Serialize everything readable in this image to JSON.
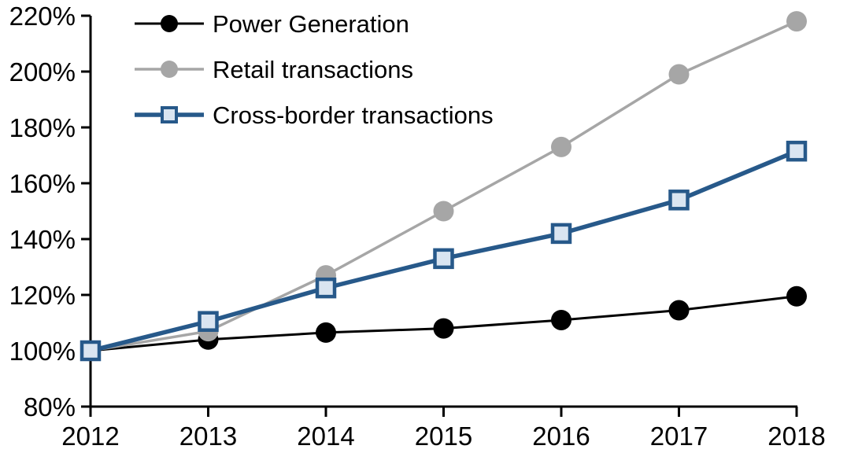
{
  "chart_data": {
    "type": "line",
    "title": "",
    "xlabel": "",
    "ylabel": "",
    "categories": [
      "2012",
      "2013",
      "2014",
      "2015",
      "2016",
      "2017",
      "2018"
    ],
    "series": [
      {
        "name": "Power Generation",
        "values": [
          100,
          104,
          106.5,
          108,
          111,
          114.5,
          119.5
        ],
        "color": "#000000",
        "marker": "circle",
        "marker_fill": "#000000",
        "line_width": 3
      },
      {
        "name": "Retail transactions",
        "values": [
          100,
          107,
          127,
          150,
          173,
          199,
          218
        ],
        "color": "#A6A6A6",
        "marker": "circle",
        "marker_fill": "#A6A6A6",
        "line_width": 3.5
      },
      {
        "name": "Cross-border transactions",
        "values": [
          100,
          110.5,
          122.5,
          133,
          142,
          154,
          171.5
        ],
        "color": "#27598A",
        "marker": "square",
        "marker_fill": "#DAE5F1",
        "line_width": 5.5
      }
    ],
    "ylim": [
      80,
      220
    ],
    "ytick_step": 20,
    "ytick_labels": [
      "80%",
      "100%",
      "120%",
      "140%",
      "160%",
      "180%",
      "200%",
      "220%"
    ],
    "xtick_labels": [
      "2012",
      "2013",
      "2014",
      "2015",
      "2016",
      "2017",
      "2018"
    ],
    "grid": false,
    "legend_position": "top-left",
    "axis_color": "#000000"
  }
}
